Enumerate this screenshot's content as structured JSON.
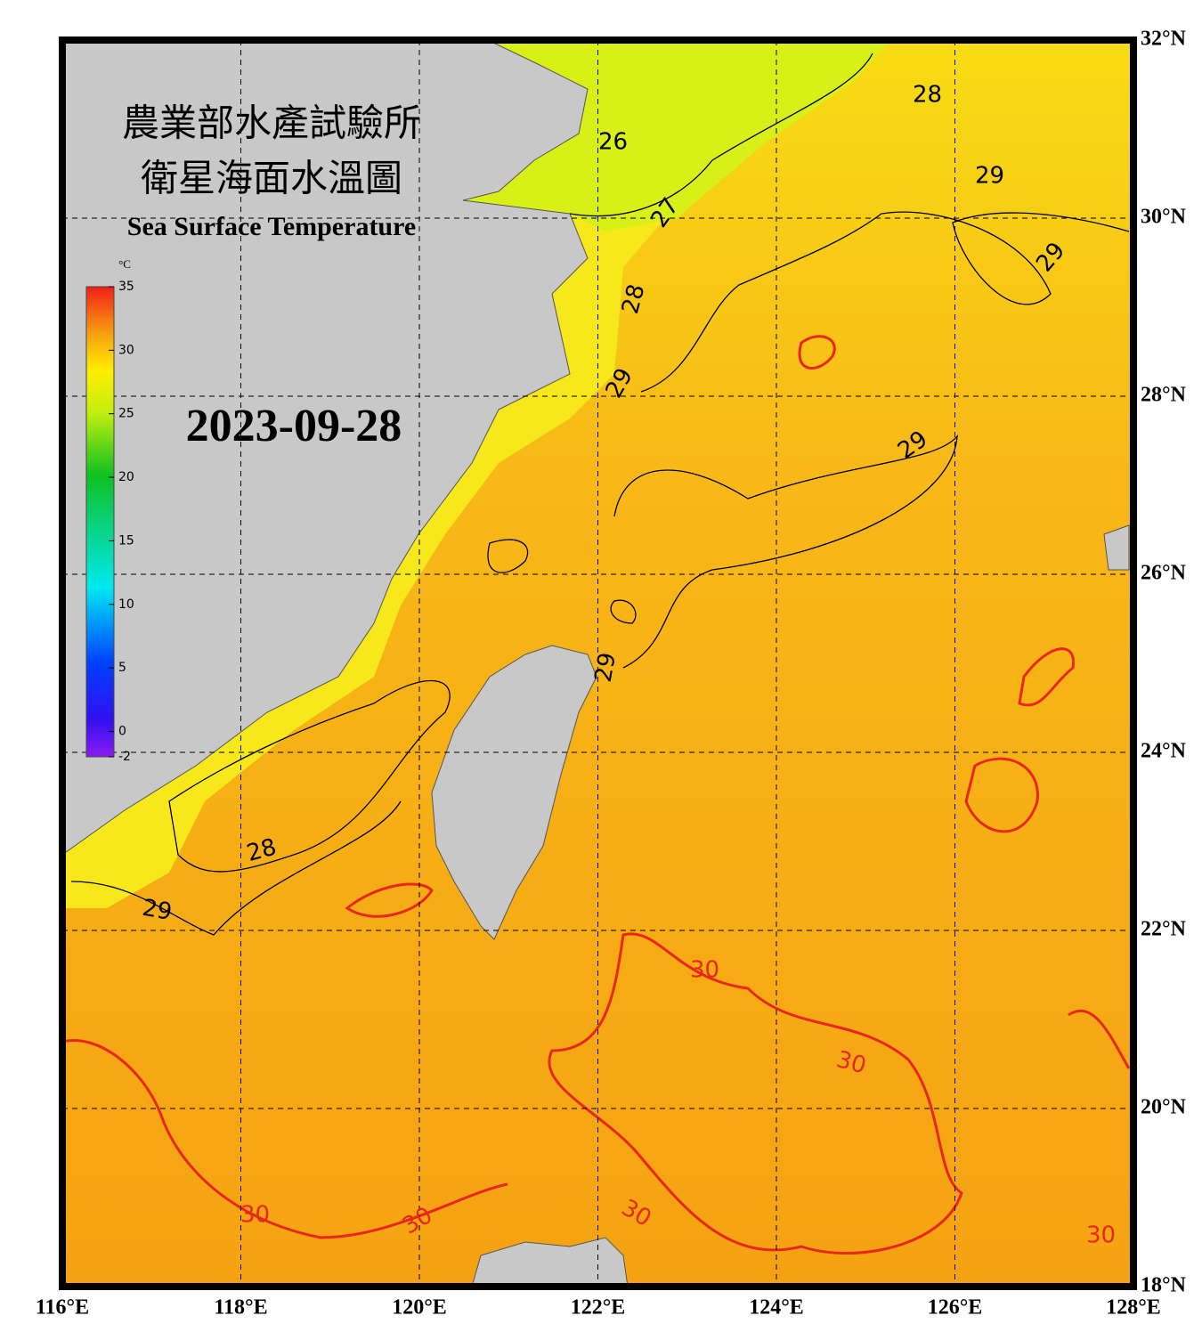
{
  "title": {
    "chinese_1": "農業部水產試驗所",
    "chinese_2": "衛星海面水溫圖",
    "english": "Sea Surface Temperature"
  },
  "date": "2023-09-28",
  "colorbar": {
    "unit": "°C",
    "range": [
      -2,
      35
    ],
    "ticks": [
      35,
      30,
      25,
      20,
      15,
      10,
      5,
      0,
      -2
    ]
  },
  "map": {
    "lon_range": [
      116,
      128
    ],
    "lat_range": [
      18,
      32
    ],
    "lon_ticks": [
      {
        "value": 116,
        "label": "116°E"
      },
      {
        "value": 118,
        "label": "118°E"
      },
      {
        "value": 120,
        "label": "120°E"
      },
      {
        "value": 122,
        "label": "122°E"
      },
      {
        "value": 124,
        "label": "124°E"
      },
      {
        "value": 126,
        "label": "126°E"
      },
      {
        "value": 128,
        "label": "128°E"
      }
    ],
    "lat_ticks": [
      {
        "value": 32,
        "label": "32°N"
      },
      {
        "value": 30,
        "label": "30°N"
      },
      {
        "value": 28,
        "label": "28°N"
      },
      {
        "value": 26,
        "label": "26°N"
      },
      {
        "value": 24,
        "label": "24°N"
      },
      {
        "value": 22,
        "label": "22°N"
      },
      {
        "value": 20,
        "label": "20°N"
      },
      {
        "value": 18,
        "label": "18°N"
      }
    ]
  },
  "contour_labels": [
    "26",
    "27",
    "28",
    "28",
    "29",
    "29",
    "29",
    "29",
    "29",
    "28",
    "29",
    "30",
    "30",
    "30",
    "30",
    "30",
    "30"
  ]
}
